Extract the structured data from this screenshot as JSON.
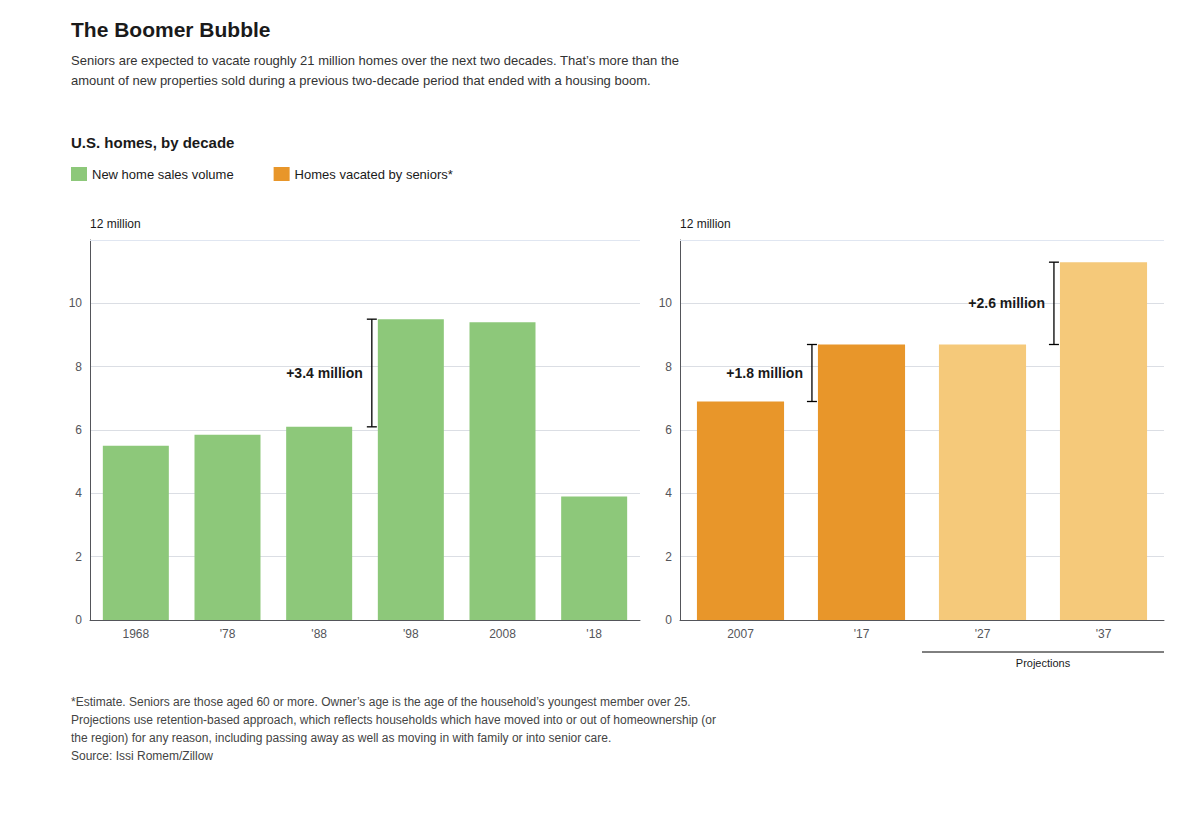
{
  "chart_data": [
    {
      "type": "bar",
      "title": "The Boomer Bubble",
      "subtitle": "Seniors are expected to vacate roughly 21 million homes over the next two decades. That’s more than the\namount of new properties sold during a previous two-decade period that ended with a housing boom.",
      "section_label": "U.S. homes, by decade",
      "legend": "upper left",
      "categories": [
        "1968",
        "'78",
        "'88",
        "'98",
        "2008",
        "'18"
      ],
      "series": [
        {
          "name": "New home sales volume",
          "color": "#8DC87A",
          "values": [
            5.5,
            5.85,
            6.1,
            9.5,
            9.4,
            3.9
          ]
        }
      ],
      "ylim": [
        0,
        12
      ],
      "yticks": [
        0,
        2,
        4,
        6,
        8,
        10
      ],
      "y_label": "12 million",
      "grid": true,
      "annotations": [
        {
          "text": "+3.4 million",
          "from": "'88",
          "to": "'98",
          "low": 6.1,
          "high": 9.5
        }
      ]
    },
    {
      "type": "bar",
      "categories": [
        "2007",
        "'17",
        "'27",
        "'37"
      ],
      "series": [
        {
          "name": "Homes vacated by seniors*",
          "color": "#E8962A",
          "colors": [
            "#E8962A",
            "#E8962A",
            "#F5C97A",
            "#F5C97A"
          ],
          "values": [
            6.9,
            8.7,
            8.7,
            11.3
          ]
        }
      ],
      "ylim": [
        0,
        12
      ],
      "yticks": [
        0,
        2,
        4,
        6,
        8,
        10
      ],
      "y_label": "12 million",
      "grid": true,
      "annotations": [
        {
          "text": "+1.8 million",
          "from": "2007",
          "to": "'17",
          "low": 6.9,
          "high": 8.7
        },
        {
          "text": "+2.6 million",
          "from": "'27",
          "to": "'37",
          "low": 8.7,
          "high": 11.3
        }
      ],
      "span_label": {
        "text": "Projections",
        "from": "'27",
        "to": "'37"
      },
      "footnote": "*Estimate. Seniors are those aged 60 or more. Owner’s age is the age of the household’s youngest member over 25.\nProjections use retention-based approach, which reflects households which have moved into or out of homeownership (or\nthe region) for any reason, including passing away as well as moving in with family or into senior care.\nSource: Issi Romem/Zillow"
    }
  ]
}
